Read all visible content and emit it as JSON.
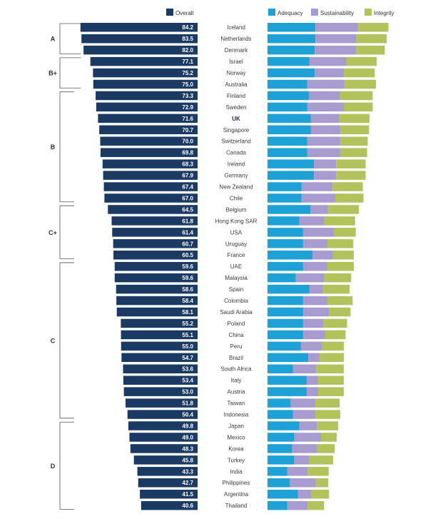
{
  "chart_data": {
    "type": "bar",
    "colors": {
      "overall": "#1a3a63",
      "adequacy": "#1ea2d5",
      "sustainability": "#a89bcf",
      "integrity": "#b3c35c"
    },
    "legend": {
      "overall": "Overall",
      "adequacy": "Adequacy",
      "sustainability": "Sustainability",
      "integrity": "Integrity"
    },
    "grades": [
      {
        "label": "A",
        "from": "Iceland",
        "to": "Denmark"
      },
      {
        "label": "B+",
        "from": "Israel",
        "to": "Australia"
      },
      {
        "label": "B",
        "from": "Finland",
        "to": "Chile"
      },
      {
        "label": "C+",
        "from": "Belgium",
        "to": "France"
      },
      {
        "label": "C",
        "from": "UAE",
        "to": "Indonesia"
      },
      {
        "label": "D",
        "from": "Japan",
        "to": "Thailand"
      }
    ],
    "countries": [
      {
        "name": "Iceland",
        "overall": 84.2,
        "adequacy": 29.2,
        "sustainability": 26.1,
        "integrity": 18.4
      },
      {
        "name": "Netherlands",
        "overall": 83.5,
        "adequacy": 29.2,
        "sustainability": 25.1,
        "integrity": 18.4
      },
      {
        "name": "Denmark",
        "overall": 82.0,
        "adequacy": 28.8,
        "sustainability": 25.1,
        "integrity": 17.6
      },
      {
        "name": "Israel",
        "overall": 77.1,
        "adequacy": 25.6,
        "sustainability": 22.6,
        "integrity": 18.4
      },
      {
        "name": "Norway",
        "overall": 75.2,
        "adequacy": 28.8,
        "sustainability": 17.8,
        "integrity": 18.8
      },
      {
        "name": "Australia",
        "overall": 75.0,
        "adequacy": 24.3,
        "sustainability": 22.6,
        "integrity": 19.2
      },
      {
        "name": "Finland",
        "overall": 73.3,
        "adequacy": 25.2,
        "sustainability": 18.9,
        "integrity": 20.0
      },
      {
        "name": "Sweden",
        "overall": 72.9,
        "adequacy": 24.3,
        "sustainability": 22.2,
        "integrity": 17.6
      },
      {
        "name": "UK",
        "overall": 71.6,
        "adequacy": 26.5,
        "sustainability": 17.3,
        "integrity": 18.4
      },
      {
        "name": "Singapore",
        "overall": 70.7,
        "adequacy": 26.5,
        "sustainability": 17.8,
        "integrity": 17.6
      },
      {
        "name": "Switzerland",
        "overall": 70.0,
        "adequacy": 24.3,
        "sustainability": 20.0,
        "integrity": 16.8
      },
      {
        "name": "Canada",
        "overall": 69.8,
        "adequacy": 24.3,
        "sustainability": 20.0,
        "integrity": 16.4
      },
      {
        "name": "Ireland",
        "overall": 68.3,
        "adequacy": 28.3,
        "sustainability": 13.5,
        "integrity": 18.0
      },
      {
        "name": "Germany",
        "overall": 67.9,
        "adequacy": 28.3,
        "sustainability": 13.5,
        "integrity": 18.0
      },
      {
        "name": "New Zealand",
        "overall": 67.4,
        "adequacy": 20.8,
        "sustainability": 18.9,
        "integrity": 18.4
      },
      {
        "name": "Chile",
        "overall": 67.0,
        "adequacy": 20.8,
        "sustainability": 20.5,
        "integrity": 17.2
      },
      {
        "name": "Belgium",
        "overall": 64.5,
        "adequacy": 26.1,
        "sustainability": 10.8,
        "integrity": 18.8
      },
      {
        "name": "Hong Kong SAR",
        "overall": 61.8,
        "adequacy": 19.5,
        "sustainability": 15.1,
        "integrity": 18.8
      },
      {
        "name": "USA",
        "overall": 61.4,
        "adequacy": 21.7,
        "sustainability": 18.9,
        "integrity": 13.2
      },
      {
        "name": "Uruguay",
        "overall": 60.7,
        "adequacy": 21.7,
        "sustainability": 14.6,
        "integrity": 16.0
      },
      {
        "name": "France",
        "overall": 60.5,
        "adequacy": 27.4,
        "sustainability": 12.4,
        "integrity": 12.8
      },
      {
        "name": "UAE",
        "overall": 59.6,
        "adequacy": 21.7,
        "sustainability": 14.6,
        "integrity": 16.4
      },
      {
        "name": "Malaysia",
        "overall": 59.6,
        "adequacy": 17.3,
        "sustainability": 17.3,
        "integrity": 16.4
      },
      {
        "name": "Spain",
        "overall": 58.6,
        "adequacy": 25.6,
        "sustainability": 8.1,
        "integrity": 16.4
      },
      {
        "name": "Colombia",
        "overall": 58.4,
        "adequacy": 21.7,
        "sustainability": 14.6,
        "integrity": 15.6
      },
      {
        "name": "Saudi Arabia",
        "overall": 58.1,
        "adequacy": 21.7,
        "sustainability": 15.7,
        "integrity": 13.2
      },
      {
        "name": "Poland",
        "overall": 55.2,
        "adequacy": 21.7,
        "sustainability": 12.4,
        "integrity": 14.4
      },
      {
        "name": "China",
        "overall": 55.1,
        "adequacy": 21.7,
        "sustainability": 13.5,
        "integrity": 12.4
      },
      {
        "name": "Peru",
        "overall": 55.0,
        "adequacy": 20.4,
        "sustainability": 13.0,
        "integrity": 13.2
      },
      {
        "name": "Brazil",
        "overall": 54.7,
        "adequacy": 24.8,
        "sustainability": 7.0,
        "integrity": 14.8
      },
      {
        "name": "South Africa",
        "overall": 53.6,
        "adequacy": 15.6,
        "sustainability": 14.1,
        "integrity": 16.8
      },
      {
        "name": "Italy",
        "overall": 53.4,
        "adequacy": 23.9,
        "sustainability": 7.0,
        "integrity": 15.6
      },
      {
        "name": "Austria",
        "overall": 53.0,
        "adequacy": 23.9,
        "sustainability": 7.0,
        "integrity": 15.6
      },
      {
        "name": "Taiwan",
        "overall": 51.8,
        "adequacy": 14.1,
        "sustainability": 15.1,
        "integrity": 14.8
      },
      {
        "name": "Indonesia",
        "overall": 50.4,
        "adequacy": 15.6,
        "sustainability": 13.5,
        "integrity": 15.2
      },
      {
        "name": "Japan",
        "overall": 49.8,
        "adequacy": 19.5,
        "sustainability": 10.8,
        "integrity": 12.8
      },
      {
        "name": "Mexico",
        "overall": 49.0,
        "adequacy": 16.4,
        "sustainability": 16.2,
        "integrity": 9.6
      },
      {
        "name": "Korea",
        "overall": 48.3,
        "adequacy": 15.1,
        "sustainability": 15.1,
        "integrity": 10.8
      },
      {
        "name": "Turkey",
        "overall": 45.8,
        "adequacy": 16.4,
        "sustainability": 9.2,
        "integrity": 14.4
      },
      {
        "name": "India",
        "overall": 43.3,
        "adequacy": 12.1,
        "sustainability": 12.4,
        "integrity": 12.8
      },
      {
        "name": "Philippines",
        "overall": 42.7,
        "adequacy": 13.8,
        "sustainability": 15.7,
        "integrity": 7.6
      },
      {
        "name": "Argentina",
        "overall": 41.5,
        "adequacy": 18.6,
        "sustainability": 8.1,
        "integrity": 10.8
      },
      {
        "name": "Thailand",
        "overall": 40.6,
        "adequacy": 12.1,
        "sustainability": 12.4,
        "integrity": 10.0
      }
    ],
    "highlight": "UK"
  }
}
